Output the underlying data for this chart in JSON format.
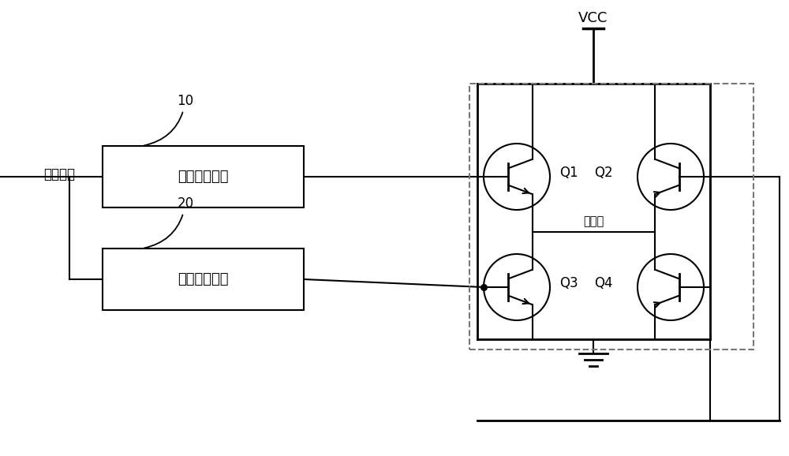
{
  "bg_color": "#ffffff",
  "line_color": "#000000",
  "dashed_color": "#555555",
  "control_signal_label": "控制信号",
  "box1_label": "第一驱动支路",
  "box2_label": "第二驱动支路",
  "box1_tag": "10",
  "box2_tag": "20",
  "vcc_label": "VCC",
  "output_label": "输出端",
  "q1_label": "Q1",
  "q2_label": "Q2",
  "q3_label": "Q3",
  "q4_label": "Q4",
  "figsize": [
    10.0,
    5.78
  ],
  "dpi": 100
}
